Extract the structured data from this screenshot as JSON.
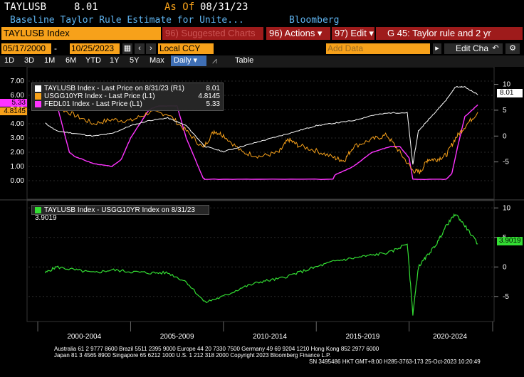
{
  "header": {
    "ticker": "TAYLUSB",
    "last": "8.01",
    "as_of_label": "As Of",
    "as_of_date": "08/31/23",
    "description": "Baseline Taylor Rule Estimate for Unite...",
    "source": "Bloomberg"
  },
  "toolbar": {
    "security": "TAYLUSB Index",
    "suggested": "96) Suggested Charts",
    "actions": "96) Actions ▾",
    "edit": "97) Edit ▾",
    "title": "G 45: Taylor rule and 2 yr",
    "start_date": "05/17/2000",
    "end_date": "10/25/2023",
    "currency": "Local CCY",
    "add_data": "Add Data",
    "edit_chart": "Edit Chart",
    "table": "Table",
    "periods": [
      "1D",
      "3D",
      "1M",
      "6M",
      "YTD",
      "1Y",
      "5Y",
      "Max"
    ],
    "frequency": "Daily ▾"
  },
  "legend_top": [
    {
      "label": "TAYLUSB Index - Last Price on 8/31/23 (R1)",
      "value": "8.01",
      "color": "#ffffff"
    },
    {
      "label": "USGG10YR Index - Last Price (L1)",
      "value": "4.8145",
      "color": "#f7a11a"
    },
    {
      "label": "FEDL01 Index - Last Price (L1)",
      "value": "5.33",
      "color": "#ff33ff"
    }
  ],
  "legend_bottom": {
    "label": "TAYLUSB Index - USGG10YR Index on 8/31/23",
    "value": "3.9019",
    "color": "#33dd33"
  },
  "left_axis_ticks": [
    "7.00",
    "6.00",
    "5.00",
    "4.00",
    "3.00",
    "2.00",
    "1.00",
    "0.00"
  ],
  "right_axis_top_ticks": [
    "10",
    "5",
    "0",
    "-5"
  ],
  "right_axis_bottom_ticks": [
    "10",
    "5",
    "0",
    "-5"
  ],
  "tags": {
    "fedl": {
      "text": "5.33",
      "color": "#ff33ff"
    },
    "usgg": {
      "text": "4.8145",
      "color": "#f7a11a"
    },
    "tayl": {
      "text": "8.01",
      "color": "#ffffff"
    },
    "diff": {
      "text": "3.9019",
      "color": "#33dd33"
    }
  },
  "x_labels": [
    "2000-2004",
    "2005-2009",
    "2010-2014",
    "2015-2019",
    "2020-2024"
  ],
  "footer": {
    "line1": "Australia 61 2 9777 8600 Brazil 5511 2395 9000 Europe 44 20 7330 7500 Germany 49 69 9204 1210 Hong Kong 852 2977 6000",
    "line2": "Japan 81 3 4565 8900           Singapore 65 6212 1000         U.S. 1 212 318 2000          Copyright 2023 Bloomberg Finance L.P.",
    "line3": "SN 3495486 HKT  GMT+8:00 H285-3763-173 25-Oct-2023 10:20:49"
  },
  "chart_data": [
    {
      "type": "line",
      "series": [
        {
          "name": "TAYLUSB Index",
          "axis": "R1",
          "x": [
            2000.4,
            2001,
            2002,
            2003,
            2004,
            2005,
            2006,
            2007,
            2008,
            2009,
            2010,
            2011,
            2012,
            2013,
            2014,
            2015,
            2016,
            2017,
            2018,
            2019,
            2019.9,
            2020.2,
            2020.5,
            2021,
            2021.5,
            2022,
            2022.5,
            2023,
            2023.7
          ],
          "values": [
            2.5,
            1,
            0.5,
            0,
            0.5,
            2,
            3,
            3.5,
            2,
            -2,
            -3,
            -2,
            -1,
            0,
            1,
            2,
            2.5,
            3,
            4,
            4.5,
            4.5,
            -5.5,
            1,
            3,
            5,
            7,
            9.5,
            9.5,
            8.01
          ]
        },
        {
          "name": "USGG10YR Index",
          "axis": "L1",
          "x": [
            2000.4,
            2001,
            2002,
            2003,
            2004,
            2005,
            2006,
            2007,
            2008,
            2008.9,
            2009.5,
            2010,
            2011,
            2012,
            2013,
            2013.5,
            2014,
            2015,
            2016,
            2016.5,
            2017,
            2018,
            2018.8,
            2019.5,
            2020.2,
            2020.6,
            2021,
            2021.5,
            2022,
            2022.5,
            2023,
            2023.7
          ],
          "values": [
            6.3,
            5.2,
            4.6,
            4.0,
            4.3,
            4.2,
            4.8,
            4.7,
            3.5,
            2.3,
            3.5,
            3.2,
            2.0,
            1.7,
            2.0,
            2.9,
            2.5,
            2.1,
            1.6,
            1.4,
            2.4,
            2.9,
            3.2,
            2.0,
            0.7,
            0.6,
            1.5,
            1.5,
            1.8,
            3.0,
            3.8,
            4.8145
          ]
        },
        {
          "name": "FEDL01 Index",
          "axis": "L1",
          "x": [
            2000.4,
            2001,
            2001.7,
            2002,
            2003,
            2004,
            2004.5,
            2005,
            2006,
            2006.5,
            2007.5,
            2008,
            2008.9,
            2009,
            2012,
            2015.9,
            2016,
            2017,
            2018,
            2019,
            2019.5,
            2020,
            2020.2,
            2022,
            2022.3,
            2022.6,
            2023,
            2023.7
          ],
          "values": [
            6.5,
            5.5,
            2.0,
            1.7,
            1.2,
            1.0,
            1.5,
            3.0,
            5.0,
            5.25,
            5.25,
            3.0,
            0.2,
            0.1,
            0.1,
            0.1,
            0.4,
            1.0,
            2.0,
            2.4,
            2.4,
            1.6,
            0.1,
            0.1,
            0.5,
            2.3,
            4.5,
            5.33
          ]
        }
      ],
      "left_ylim": [
        -0.5,
        7.5
      ],
      "right_ylim": [
        -10,
        12
      ],
      "xlim": [
        1999.5,
        2024.5
      ]
    },
    {
      "type": "line",
      "series": [
        {
          "name": "TAYLUSB Index - USGG10YR Index",
          "x": [
            2000.4,
            2001,
            2002,
            2003,
            2004,
            2005,
            2006,
            2007,
            2008,
            2009,
            2010,
            2011,
            2012,
            2013,
            2014,
            2015,
            2016,
            2017,
            2018,
            2019,
            2019.9,
            2020.2,
            2020.5,
            2021,
            2021.5,
            2022,
            2022.5,
            2023,
            2023.7
          ],
          "values": [
            -1,
            0,
            -0.5,
            -1,
            -0.5,
            -0.8,
            -1,
            -1,
            -2.5,
            -6,
            -5,
            -3.5,
            -2.5,
            -2,
            -1,
            0,
            1,
            1.5,
            2,
            2.5,
            4,
            -8,
            0,
            2,
            4,
            7,
            9,
            7,
            3.9019
          ]
        }
      ],
      "ylim": [
        -9,
        11
      ],
      "xlim": [
        1999.5,
        2024.5
      ]
    }
  ]
}
